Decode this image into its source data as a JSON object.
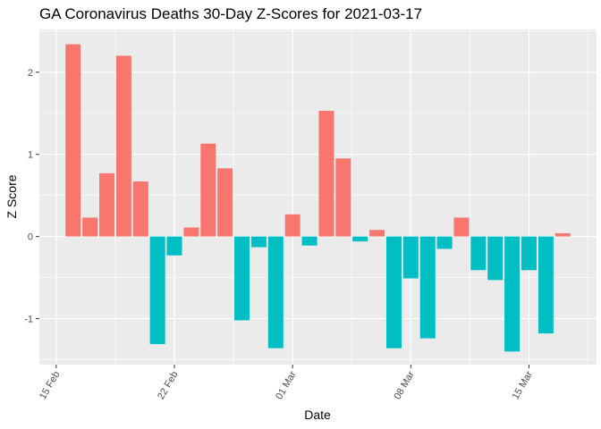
{
  "chart_data": {
    "type": "bar",
    "title": "GA Coronavirus Deaths 30-Day Z-Scores for 2021-03-17",
    "xlabel": "Date",
    "ylabel": "Z Score",
    "x_ticks": [
      "15 Feb",
      "22 Feb",
      "01 Mar",
      "08 Mar",
      "15 Mar"
    ],
    "y_ticks": [
      "-1",
      "0",
      "1",
      "2"
    ],
    "ylim": [
      -1.56,
      2.52
    ],
    "xlim": [
      "2021-02-14",
      "2021-03-19"
    ],
    "grid": true,
    "colors": {
      "positive": "#F8766D",
      "negative": "#00BFC4",
      "panel": "#EBEBEB",
      "grid": "#FFFFFF"
    },
    "x": [
      "2021-02-16",
      "2021-02-17",
      "2021-02-18",
      "2021-02-19",
      "2021-02-20",
      "2021-02-21",
      "2021-02-22",
      "2021-02-23",
      "2021-02-24",
      "2021-02-25",
      "2021-02-26",
      "2021-02-27",
      "2021-02-28",
      "2021-03-01",
      "2021-03-02",
      "2021-03-03",
      "2021-03-04",
      "2021-03-05",
      "2021-03-06",
      "2021-03-07",
      "2021-03-08",
      "2021-03-09",
      "2021-03-10",
      "2021-03-11",
      "2021-03-12",
      "2021-03-13",
      "2021-03-14",
      "2021-03-15",
      "2021-03-16",
      "2021-03-17"
    ],
    "values": [
      2.34,
      0.23,
      0.77,
      2.2,
      0.67,
      -1.31,
      -0.23,
      0.11,
      1.13,
      0.83,
      -1.02,
      -0.13,
      -1.36,
      0.27,
      -0.11,
      1.53,
      0.95,
      -0.06,
      0.08,
      -1.36,
      -0.51,
      -1.24,
      -0.15,
      0.23,
      -0.41,
      -0.53,
      -1.4,
      -0.41,
      -1.18,
      0.04
    ]
  }
}
